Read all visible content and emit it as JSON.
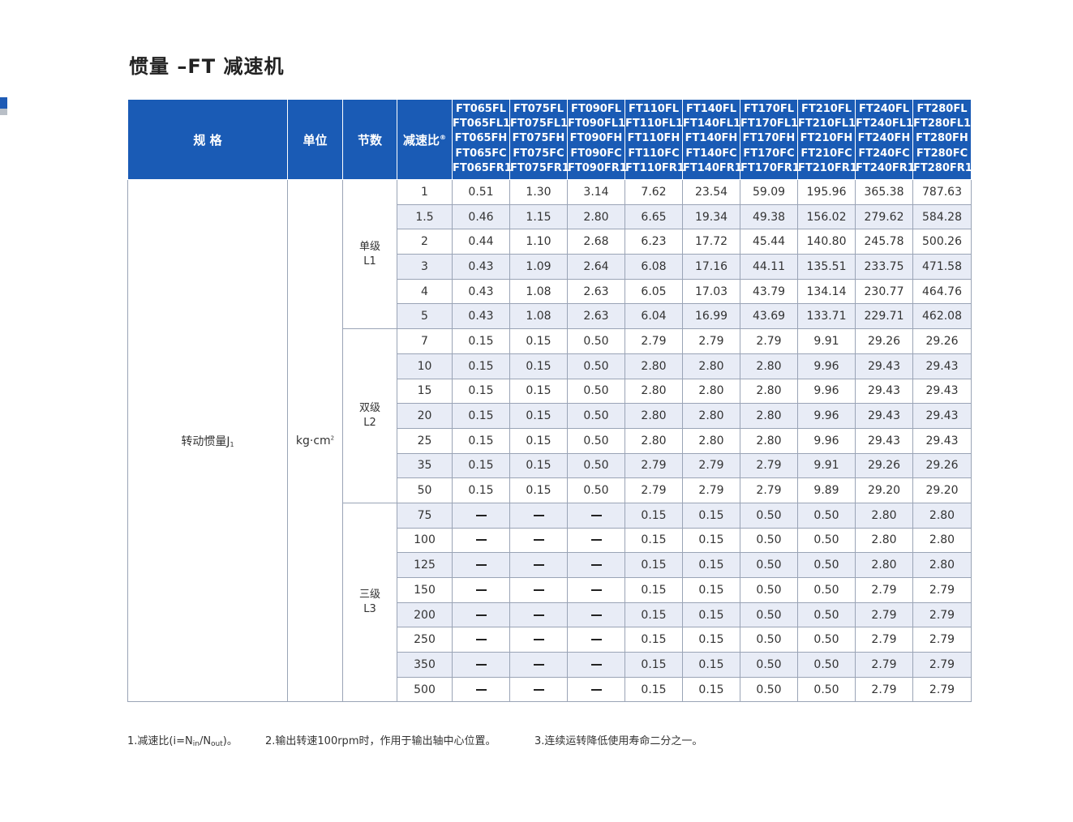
{
  "title": "惯量 –FT 减速机",
  "header": {
    "spec": "规 格",
    "unit": "单位",
    "stage": "节数",
    "ratio": "减速比",
    "ratio_mark": "®"
  },
  "models": [
    [
      "FT065FL",
      "FT065FL1",
      "FT065FH",
      "FT065FC",
      "FT065FR1"
    ],
    [
      "FT075FL",
      "FT075FL1",
      "FT075FH",
      "FT075FC",
      "FT075FR1"
    ],
    [
      "FT090FL",
      "FT090FL1",
      "FT090FH",
      "FT090FC",
      "FT090FR1"
    ],
    [
      "FT110FL",
      "FT110FL1",
      "FT110FH",
      "FT110FC",
      "FT110FR1"
    ],
    [
      "FT140FL",
      "FT140FL1",
      "FT140FH",
      "FT140FC",
      "FT140FR1"
    ],
    [
      "FT170FL",
      "FT170FL1",
      "FT170FH",
      "FT170FC",
      "FT170FR1"
    ],
    [
      "FT210FL",
      "FT210FL1",
      "FT210FH",
      "FT210FC",
      "FT210FR1"
    ],
    [
      "FT240FL",
      "FT240FL1",
      "FT240FH",
      "FT240FC",
      "FT240FR1"
    ],
    [
      "FT280FL",
      "FT280FL1",
      "FT280FH",
      "FT280FC",
      "FT280FR1"
    ]
  ],
  "spec_label": "转动惯量J",
  "spec_sub": "1",
  "unit_label": "kg·cm",
  "unit_sup": "2",
  "stages": [
    {
      "name": "单级",
      "code": "L1",
      "rows": [
        {
          "ratio": "1",
          "values": [
            "0.51",
            "1.30",
            "3.14",
            "7.62",
            "23.54",
            "59.09",
            "195.96",
            "365.38",
            "787.63"
          ]
        },
        {
          "ratio": "1.5",
          "values": [
            "0.46",
            "1.15",
            "2.80",
            "6.65",
            "19.34",
            "49.38",
            "156.02",
            "279.62",
            "584.28"
          ]
        },
        {
          "ratio": "2",
          "values": [
            "0.44",
            "1.10",
            "2.68",
            "6.23",
            "17.72",
            "45.44",
            "140.80",
            "245.78",
            "500.26"
          ]
        },
        {
          "ratio": "3",
          "values": [
            "0.43",
            "1.09",
            "2.64",
            "6.08",
            "17.16",
            "44.11",
            "135.51",
            "233.75",
            "471.58"
          ]
        },
        {
          "ratio": "4",
          "values": [
            "0.43",
            "1.08",
            "2.63",
            "6.05",
            "17.03",
            "43.79",
            "134.14",
            "230.77",
            "464.76"
          ]
        },
        {
          "ratio": "5",
          "values": [
            "0.43",
            "1.08",
            "2.63",
            "6.04",
            "16.99",
            "43.69",
            "133.71",
            "229.71",
            "462.08"
          ]
        }
      ]
    },
    {
      "name": "双级",
      "code": "L2",
      "rows": [
        {
          "ratio": "7",
          "values": [
            "0.15",
            "0.15",
            "0.50",
            "2.79",
            "2.79",
            "2.79",
            "9.91",
            "29.26",
            "29.26"
          ]
        },
        {
          "ratio": "10",
          "values": [
            "0.15",
            "0.15",
            "0.50",
            "2.80",
            "2.80",
            "2.80",
            "9.96",
            "29.43",
            "29.43"
          ]
        },
        {
          "ratio": "15",
          "values": [
            "0.15",
            "0.15",
            "0.50",
            "2.80",
            "2.80",
            "2.80",
            "9.96",
            "29.43",
            "29.43"
          ]
        },
        {
          "ratio": "20",
          "values": [
            "0.15",
            "0.15",
            "0.50",
            "2.80",
            "2.80",
            "2.80",
            "9.96",
            "29.43",
            "29.43"
          ]
        },
        {
          "ratio": "25",
          "values": [
            "0.15",
            "0.15",
            "0.50",
            "2.80",
            "2.80",
            "2.80",
            "9.96",
            "29.43",
            "29.43"
          ]
        },
        {
          "ratio": "35",
          "values": [
            "0.15",
            "0.15",
            "0.50",
            "2.79",
            "2.79",
            "2.79",
            "9.91",
            "29.26",
            "29.26"
          ]
        },
        {
          "ratio": "50",
          "values": [
            "0.15",
            "0.15",
            "0.50",
            "2.79",
            "2.79",
            "2.79",
            "9.89",
            "29.20",
            "29.20"
          ]
        }
      ]
    },
    {
      "name": "三级",
      "code": "L3",
      "rows": [
        {
          "ratio": "75",
          "values": [
            "—",
            "—",
            "—",
            "0.15",
            "0.15",
            "0.50",
            "0.50",
            "2.80",
            "2.80"
          ]
        },
        {
          "ratio": "100",
          "values": [
            "—",
            "—",
            "—",
            "0.15",
            "0.15",
            "0.50",
            "0.50",
            "2.80",
            "2.80"
          ]
        },
        {
          "ratio": "125",
          "values": [
            "—",
            "—",
            "—",
            "0.15",
            "0.15",
            "0.50",
            "0.50",
            "2.80",
            "2.80"
          ]
        },
        {
          "ratio": "150",
          "values": [
            "—",
            "—",
            "—",
            "0.15",
            "0.15",
            "0.50",
            "0.50",
            "2.79",
            "2.79"
          ]
        },
        {
          "ratio": "200",
          "values": [
            "—",
            "—",
            "—",
            "0.15",
            "0.15",
            "0.50",
            "0.50",
            "2.79",
            "2.79"
          ]
        },
        {
          "ratio": "250",
          "values": [
            "—",
            "—",
            "—",
            "0.15",
            "0.15",
            "0.50",
            "0.50",
            "2.79",
            "2.79"
          ]
        },
        {
          "ratio": "350",
          "values": [
            "—",
            "—",
            "—",
            "0.15",
            "0.15",
            "0.50",
            "0.50",
            "2.79",
            "2.79"
          ]
        },
        {
          "ratio": "500",
          "values": [
            "—",
            "—",
            "—",
            "0.15",
            "0.15",
            "0.50",
            "0.50",
            "2.79",
            "2.79"
          ]
        }
      ]
    }
  ],
  "footnotes": {
    "n1_prefix": "1.减速比(i=N",
    "n1_in": "in",
    "n1_mid": "/N",
    "n1_out": "out",
    "n1_suffix": ")。",
    "n2": "2.输出转速100rpm时，作用于输出轴中心位置。",
    "n3": "3.连续运转降低使用寿命二分之一。"
  },
  "colors": {
    "header_blue": "#1a5bb5",
    "row_alt": "#e8ecf6",
    "border": "#9aa4b6"
  }
}
